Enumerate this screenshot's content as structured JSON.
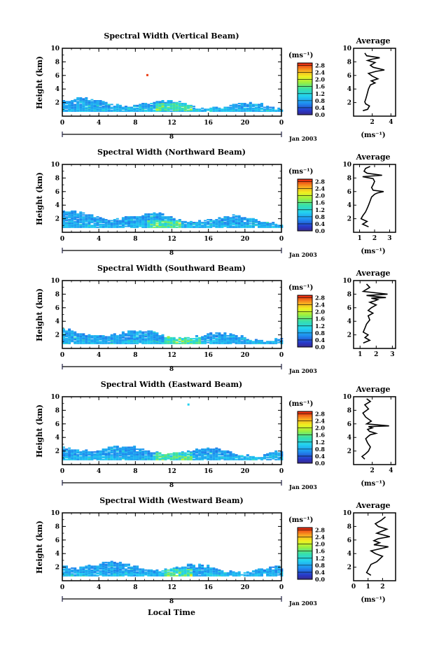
{
  "chart_data": [
    {
      "type": "heatmap",
      "title": "Spectral Width (Vertical Beam)",
      "xlabel": "",
      "ylabel": "Height (km)",
      "xlim": [
        0,
        24
      ],
      "ylim": [
        0,
        10
      ],
      "x_ticks": [
        "0",
        "4",
        "8",
        "12",
        "16",
        "20",
        "0"
      ],
      "y_ticks": [
        "2",
        "4",
        "6",
        "8",
        "10"
      ],
      "date_labels": [
        "8",
        "Jan 2003"
      ],
      "colorbar": {
        "unit": "(ms⁻¹)",
        "ticks": [
          "0.0",
          "0.4",
          "0.8",
          "1.2",
          "1.6",
          "2.0",
          "2.4",
          "2.8"
        ],
        "range": [
          0,
          2.8
        ]
      },
      "field": {
        "base_top_km": 2.2,
        "peak_hours": [
          10,
          14
        ],
        "peak_height_km": 1.3,
        "outliers": [
          {
            "x": 9.2,
            "y": 6.1,
            "value": 2.7
          }
        ]
      },
      "profile": {
        "title": "Average",
        "xlabel": "(ms⁻¹)",
        "x_ticks": [
          "2",
          "4"
        ],
        "y_ticks": [
          "2",
          "4",
          "6",
          "8",
          "10"
        ],
        "xlim": [
          0,
          4.5
        ],
        "ylim": [
          0,
          10
        ],
        "x": [
          1.0,
          1.5,
          1.7,
          1.3,
          1.2,
          1.3,
          1.4,
          1.5,
          1.6,
          1.8,
          2.3,
          1.9,
          2.6,
          2.0,
          1.6,
          2.4,
          3.3,
          2.1,
          1.8,
          2.3,
          1.5,
          2.0,
          2.8,
          1.4,
          1.2
        ],
        "y": [
          0.8,
          1.0,
          1.5,
          1.8,
          2.1,
          2.5,
          3.0,
          3.5,
          4.0,
          4.6,
          4.9,
          5.2,
          5.5,
          5.9,
          6.3,
          6.6,
          6.8,
          7.2,
          7.5,
          7.9,
          8.2,
          8.4,
          8.6,
          8.9,
          9.3
        ]
      }
    },
    {
      "type": "heatmap",
      "title": "Spectral Width (Northward Beam)",
      "xlabel": "",
      "ylabel": "Height (km)",
      "xlim": [
        0,
        24
      ],
      "ylim": [
        0,
        10
      ],
      "x_ticks": [
        "0",
        "4",
        "8",
        "12",
        "16",
        "20",
        "0"
      ],
      "y_ticks": [
        "2",
        "4",
        "6",
        "8",
        "10"
      ],
      "date_labels": [
        "8",
        "Jan 2003"
      ],
      "colorbar": {
        "unit": "(ms⁻¹)",
        "ticks": [
          "0.0",
          "0.4",
          "0.8",
          "1.2",
          "1.6",
          "2.0",
          "2.4",
          "2.8"
        ],
        "range": [
          0,
          2.8
        ]
      },
      "field": {
        "base_top_km": 2.6,
        "peak_hours": [
          9,
          13
        ],
        "peak_height_km": 1.2,
        "outliers": []
      },
      "profile": {
        "title": "Average",
        "xlabel": "(ms⁻¹)",
        "x_ticks": [
          "1",
          "2",
          "3"
        ],
        "y_ticks": [
          "2",
          "4",
          "6",
          "8",
          "10"
        ],
        "xlim": [
          0.6,
          3.4
        ],
        "ylim": [
          0,
          10
        ],
        "x": [
          1.6,
          1.2,
          1.5,
          1.1,
          1.2,
          1.4,
          1.5,
          1.6,
          1.7,
          1.8,
          2.0,
          2.2,
          2.6,
          1.9,
          1.8,
          1.9,
          2.0,
          1.9,
          1.2,
          2.5,
          1.5,
          1.3,
          1.4,
          1.7
        ],
        "y": [
          0.8,
          1.2,
          1.6,
          2.0,
          2.4,
          3.0,
          3.5,
          4.0,
          4.6,
          5.2,
          5.6,
          5.8,
          6.0,
          6.2,
          6.6,
          7.0,
          7.5,
          7.9,
          8.2,
          8.4,
          8.7,
          9.0,
          9.4,
          9.7
        ]
      }
    },
    {
      "type": "heatmap",
      "title": "Spectral Width (Southward Beam)",
      "xlabel": "",
      "ylabel": "Height (km)",
      "xlim": [
        0,
        24
      ],
      "ylim": [
        0,
        10
      ],
      "x_ticks": [
        "0",
        "4",
        "8",
        "12",
        "16",
        "20",
        "0"
      ],
      "y_ticks": [
        "2",
        "4",
        "6",
        "8",
        "10"
      ],
      "date_labels": [
        "8",
        "Jan 2003"
      ],
      "colorbar": {
        "unit": "(ms⁻¹)",
        "ticks": [
          "0.0",
          "0.4",
          "0.8",
          "1.2",
          "1.6",
          "2.0",
          "2.4",
          "2.8"
        ],
        "range": [
          0,
          2.8
        ]
      },
      "field": {
        "base_top_km": 2.4,
        "peak_hours": [
          11,
          15
        ],
        "peak_height_km": 1.1,
        "outliers": []
      },
      "profile": {
        "title": "Average",
        "xlabel": "",
        "x_ticks": [
          "1",
          "2",
          "3"
        ],
        "y_ticks": [
          "2",
          "4",
          "6",
          "8",
          "10"
        ],
        "xlim": [
          0.6,
          3.2
        ],
        "ylim": [
          0,
          10
        ],
        "x": [
          1.2,
          1.6,
          1.3,
          1.5,
          1.2,
          1.3,
          1.4,
          1.6,
          1.5,
          1.8,
          1.5,
          1.7,
          2.0,
          1.6,
          1.9,
          2.1,
          1.7,
          2.6,
          1.4,
          2.7,
          1.2,
          1.6,
          1.4
        ],
        "y": [
          0.8,
          1.2,
          1.6,
          2.0,
          2.4,
          3.0,
          3.6,
          4.2,
          4.8,
          5.2,
          5.6,
          6.0,
          6.4,
          6.8,
          7.0,
          7.2,
          7.4,
          7.5,
          7.8,
          8.0,
          8.4,
          9.0,
          9.5
        ]
      }
    },
    {
      "type": "heatmap",
      "title": "Spectral Width (Eastward Beam)",
      "xlabel": "",
      "ylabel": "Height (km)",
      "xlim": [
        0,
        24
      ],
      "ylim": [
        0,
        10
      ],
      "x_ticks": [
        "0",
        "4",
        "8",
        "12",
        "16",
        "20",
        "0"
      ],
      "y_ticks": [
        "2",
        "4",
        "6",
        "8",
        "10"
      ],
      "date_labels": [
        "8",
        "Jan 2003"
      ],
      "colorbar": {
        "unit": "(ms⁻¹)",
        "ticks": [
          "0.0",
          "0.4",
          "0.8",
          "1.2",
          "1.6",
          "2.0",
          "2.4",
          "2.8"
        ],
        "range": [
          0,
          2.8
        ]
      },
      "field": {
        "base_top_km": 2.5,
        "peak_hours": [
          10,
          14
        ],
        "peak_height_km": 1.2,
        "outliers": [
          {
            "x": 13.7,
            "y": 8.9,
            "value": 1.0
          }
        ]
      },
      "profile": {
        "title": "Average",
        "xlabel": "(ms⁻¹)",
        "x_ticks": [
          "2",
          "4"
        ],
        "y_ticks": [
          "2",
          "4",
          "6",
          "8",
          "10"
        ],
        "xlim": [
          0,
          4.5
        ],
        "ylim": [
          0,
          10
        ],
        "x": [
          1.2,
          0.9,
          1.3,
          1.6,
          1.8,
          1.5,
          1.3,
          1.6,
          1.8,
          2.4,
          1.7,
          1.5,
          2.0,
          1.6,
          3.8,
          1.4,
          1.9,
          1.3,
          1.0,
          1.6,
          1.2,
          1.8,
          1.4
        ],
        "y": [
          0.8,
          1.2,
          1.6,
          2.0,
          2.6,
          3.2,
          3.8,
          4.2,
          4.4,
          4.6,
          4.9,
          5.2,
          5.4,
          5.6,
          5.7,
          6.0,
          6.4,
          7.0,
          7.6,
          8.2,
          8.8,
          9.3,
          9.7
        ]
      }
    },
    {
      "type": "heatmap",
      "title": "Spectral Width (Westward Beam)",
      "xlabel": "Local Time",
      "ylabel": "Height (km)",
      "xlim": [
        0,
        24
      ],
      "ylim": [
        0,
        10
      ],
      "x_ticks": [
        "0",
        "4",
        "8",
        "12",
        "16",
        "20",
        "0"
      ],
      "y_ticks": [
        "2",
        "4",
        "6",
        "8",
        "10"
      ],
      "date_labels": [
        "8",
        "Jan 2003"
      ],
      "colorbar": {
        "unit": "(ms⁻¹)",
        "ticks": [
          "0.0",
          "0.4",
          "0.8",
          "1.2",
          "1.6",
          "2.0",
          "2.4",
          "2.8"
        ],
        "range": [
          0,
          2.8
        ]
      },
      "field": {
        "base_top_km": 2.4,
        "peak_hours": [
          11,
          14
        ],
        "peak_height_km": 1.2,
        "outliers": []
      },
      "profile": {
        "title": "Average",
        "xlabel": "(ms⁻¹)",
        "x_ticks": [
          "0",
          "1",
          "2"
        ],
        "y_ticks": [
          "2",
          "4",
          "6",
          "8",
          "10"
        ],
        "xlim": [
          0,
          2.9
        ],
        "ylim": [
          0,
          10
        ],
        "x": [
          1.2,
          0.9,
          1.0,
          1.1,
          1.2,
          1.6,
          1.8,
          2.0,
          1.5,
          1.2,
          2.4,
          1.4,
          1.8,
          1.4,
          1.7,
          2.5,
          1.6,
          2.3,
          1.7,
          1.5,
          1.9,
          2.2
        ],
        "y": [
          0.8,
          1.2,
          1.6,
          2.0,
          2.4,
          2.8,
          3.2,
          3.6,
          4.0,
          4.4,
          5.0,
          5.3,
          5.6,
          5.9,
          6.2,
          6.5,
          7.0,
          7.6,
          8.0,
          8.4,
          8.9,
          9.4
        ]
      }
    }
  ]
}
